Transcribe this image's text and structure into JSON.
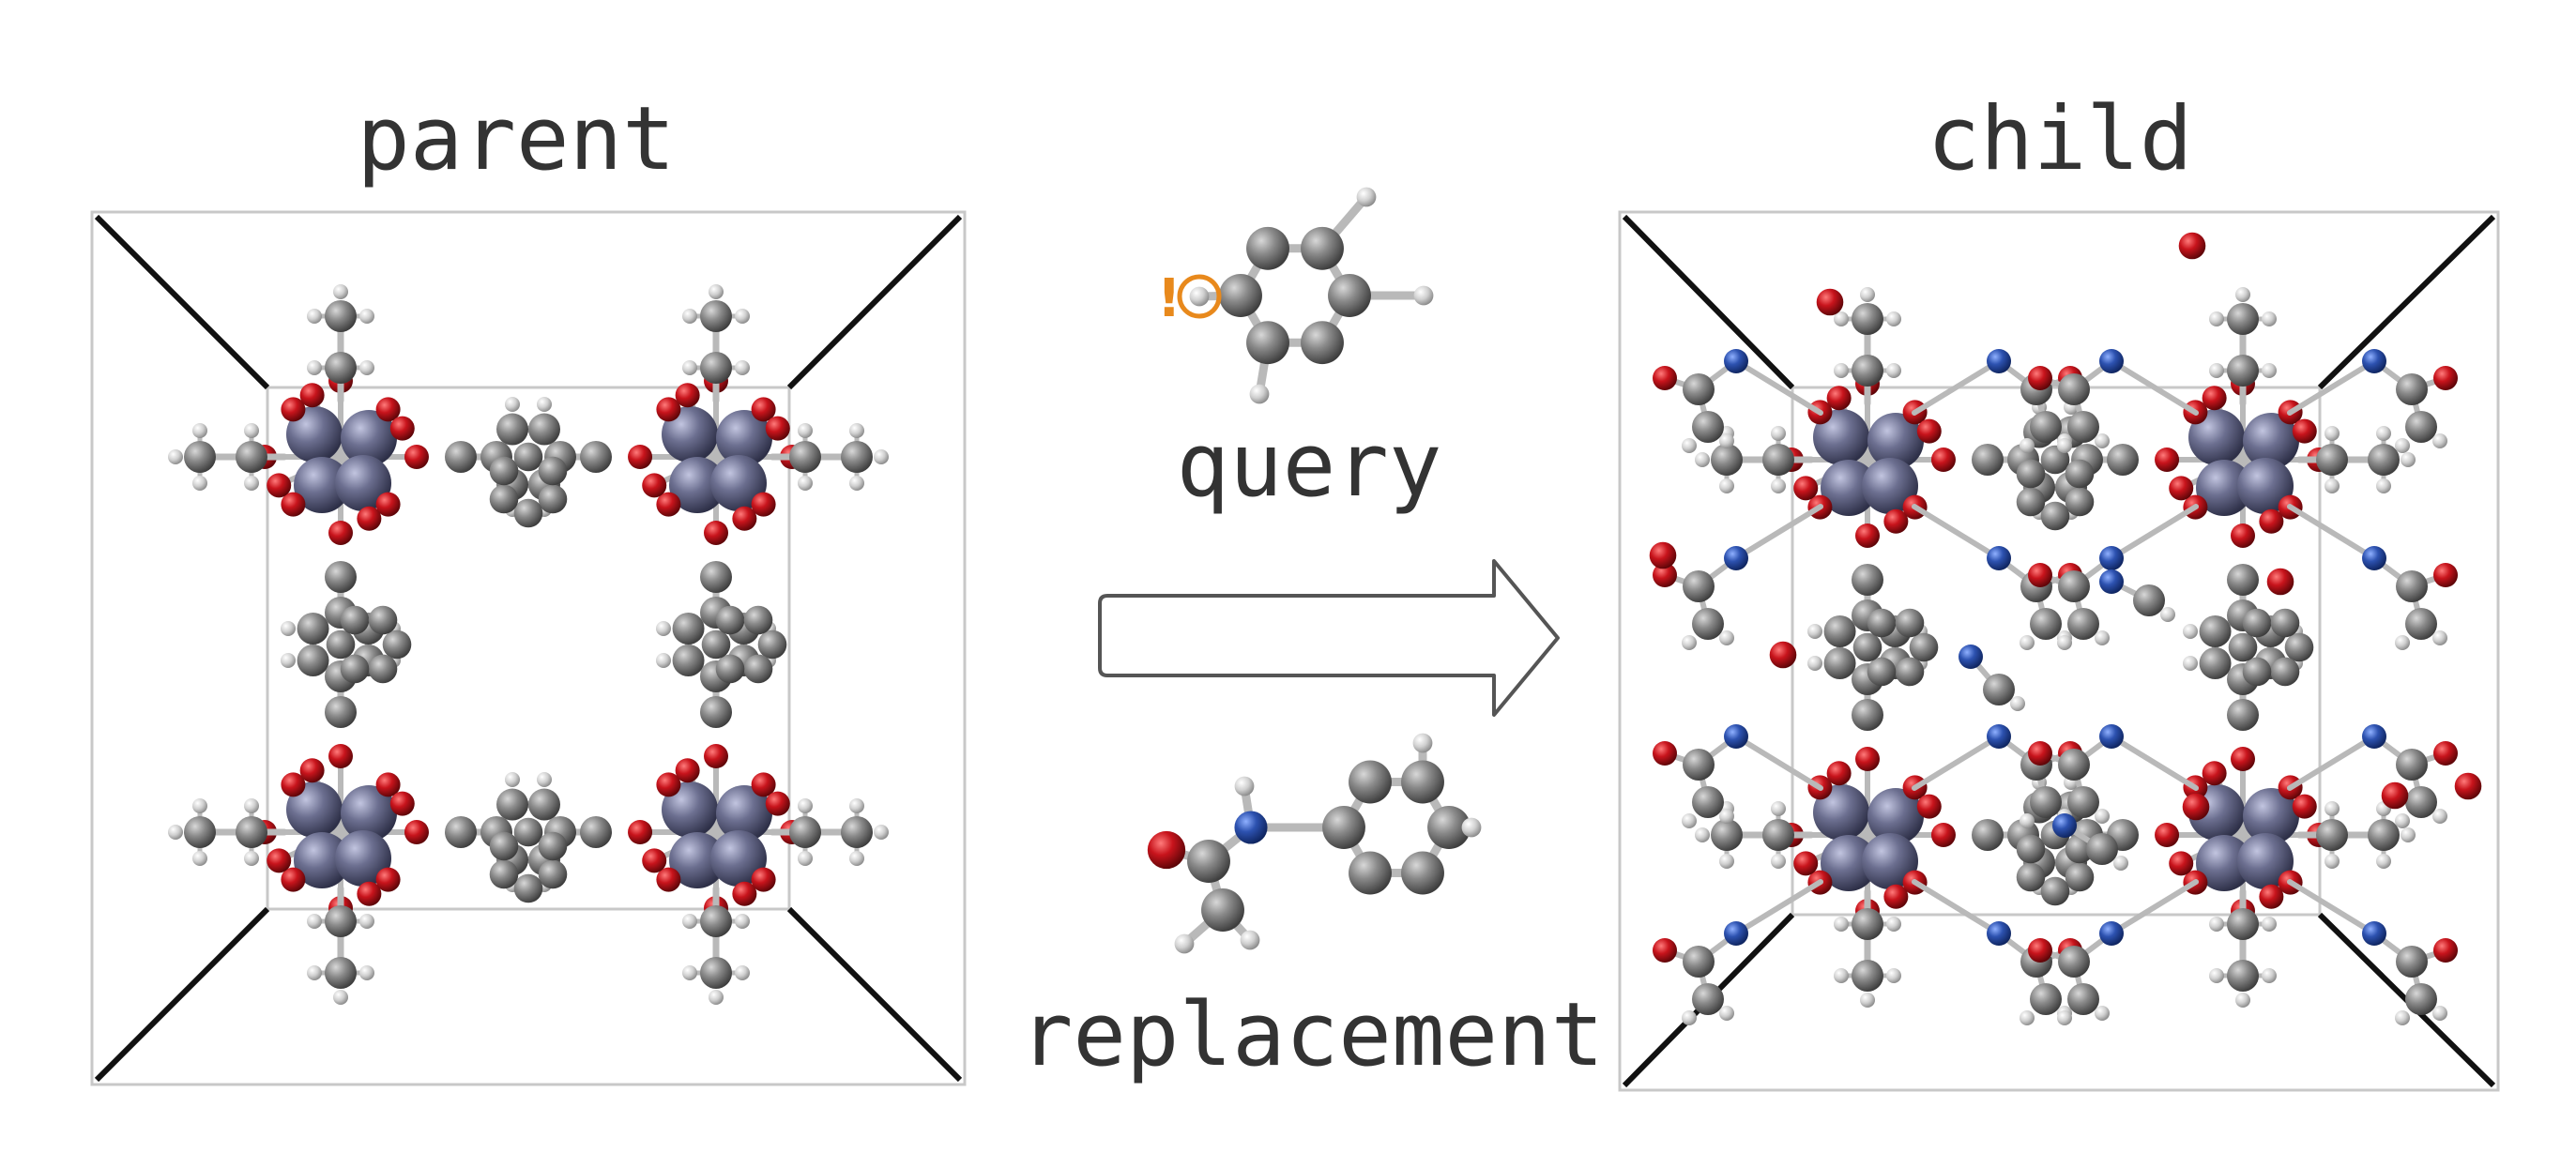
{
  "labels": {
    "parent": "parent",
    "child": "child",
    "query": "query",
    "replacement": "replacement",
    "query_marker": "!"
  },
  "colors": {
    "carbon": "#7d7d7d",
    "hydrogen": "#d4d4d4",
    "oxygen": "#c0141c",
    "nitrogen": "#2a4fa8",
    "metal": "#6b6e8e",
    "marker": "#e8891c",
    "text": "#333333"
  }
}
